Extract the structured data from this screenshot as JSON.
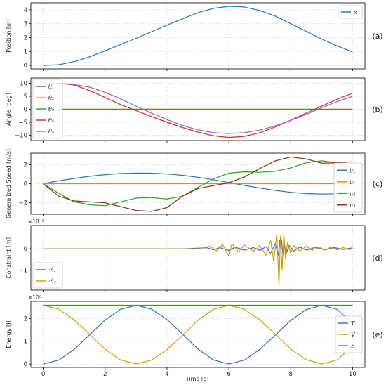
{
  "figure": {
    "x_axis_label": "Time [s]"
  },
  "chart_data": [
    {
      "type": "line",
      "id": "a",
      "tag": "(a)",
      "ylabel": "Position [m]",
      "xlim": [
        -0.4,
        10.4
      ],
      "ylim": [
        -0.25,
        4.5
      ],
      "xticks": [
        0,
        2,
        4,
        6,
        8,
        10
      ],
      "yticks": [
        0,
        1,
        2,
        3,
        4
      ],
      "legend_loc": "top-right",
      "series": [
        {
          "name": "x",
          "legend_label": "x",
          "color": "#1f77b4",
          "x": [
            0,
            0.5,
            1,
            1.5,
            2,
            2.5,
            3,
            3.5,
            4,
            4.5,
            5,
            5.5,
            6,
            6.5,
            7,
            7.5,
            8,
            8.5,
            9,
            9.5,
            10
          ],
          "y": [
            0,
            0.05,
            0.27,
            0.62,
            1.05,
            1.5,
            1.95,
            2.42,
            2.9,
            3.35,
            3.8,
            4.1,
            4.25,
            4.2,
            3.95,
            3.55,
            3.0,
            2.45,
            1.9,
            1.4,
            0.97
          ]
        }
      ]
    },
    {
      "type": "line",
      "id": "b",
      "tag": "(b)",
      "ylabel": "Angle [deg]",
      "xlim": [
        -0.4,
        10.4
      ],
      "ylim": [
        -12,
        12
      ],
      "xticks": [
        0,
        2,
        4,
        6,
        8,
        10
      ],
      "yticks": [
        -10,
        -5,
        0,
        5,
        10
      ],
      "legend_loc": "bottom-left",
      "series": [
        {
          "name": "θ1",
          "legend_label": "θ₁",
          "color": "#1f77b4",
          "x": [
            0,
            10
          ],
          "y": [
            0,
            0
          ]
        },
        {
          "name": "θ2",
          "legend_label": "θ₂",
          "color": "#ff7f0e",
          "x": [
            0,
            10
          ],
          "y": [
            0,
            0
          ]
        },
        {
          "name": "θ3",
          "legend_label": "θ₃",
          "color": "#2ca02c",
          "x": [
            0,
            10
          ],
          "y": [
            0,
            0
          ]
        },
        {
          "name": "θ4",
          "legend_label": "θ₄",
          "color": "#d62728",
          "x": [
            0,
            0.5,
            1,
            1.5,
            2,
            2.5,
            3,
            3.5,
            4,
            4.5,
            5,
            5.5,
            6,
            6.5,
            7,
            7.5,
            8,
            8.5,
            9,
            9.5,
            10
          ],
          "y": [
            10,
            10,
            9.3,
            7.2,
            4.5,
            1.8,
            -0.5,
            -2.8,
            -5.0,
            -7.0,
            -8.8,
            -10.2,
            -10.8,
            -10.4,
            -9.0,
            -6.8,
            -4.2,
            -1.5,
            1.2,
            3.8,
            6.2
          ]
        },
        {
          "name": "θ5",
          "legend_label": "θ₅",
          "color": "#9467bd",
          "x": [
            0,
            0.5,
            1,
            1.5,
            2,
            2.5,
            3,
            3.5,
            4,
            4.5,
            5,
            5.5,
            6,
            6.5,
            7,
            7.5,
            8,
            8.5,
            9,
            9.5,
            10
          ],
          "y": [
            10,
            9.9,
            9.5,
            8.5,
            6.5,
            4.0,
            1.2,
            -1.5,
            -4.0,
            -6.2,
            -7.9,
            -9.0,
            -9.3,
            -9.0,
            -8.0,
            -6.4,
            -4.3,
            -2.0,
            0.6,
            2.9,
            5.0
          ]
        }
      ]
    },
    {
      "type": "line",
      "id": "c",
      "tag": "(c)",
      "ylabel": "Generalized Speed [m/s]",
      "xlim": [
        -0.4,
        10.4
      ],
      "ylim": [
        -3.2,
        3.2
      ],
      "xticks": [
        0,
        2,
        4,
        6,
        8,
        10
      ],
      "yticks": [
        -2,
        0,
        2
      ],
      "legend_loc": "bottom-right",
      "series": [
        {
          "name": "ux",
          "legend_label": "uₓ",
          "color": "#1f77b4",
          "x": [
            0,
            0.5,
            1,
            1.5,
            2,
            2.5,
            3,
            3.5,
            4,
            4.5,
            5,
            5.5,
            6,
            6.5,
            7,
            7.5,
            8,
            8.5,
            9,
            9.5,
            10
          ],
          "y": [
            0,
            0.3,
            0.55,
            0.78,
            0.95,
            1.07,
            1.12,
            1.1,
            1.02,
            0.88,
            0.68,
            0.42,
            0.12,
            -0.18,
            -0.45,
            -0.7,
            -0.9,
            -1.03,
            -1.08,
            -1.05,
            -0.95
          ]
        },
        {
          "name": "u1",
          "legend_label": "u₁",
          "color": "#ff7f0e",
          "x": [
            0,
            10
          ],
          "y": [
            0,
            0
          ]
        },
        {
          "name": "u2",
          "legend_label": "u₂",
          "color": "#2ca02c",
          "x": [
            0,
            0.5,
            1,
            1.5,
            2,
            2.5,
            3,
            3.5,
            4,
            4.5,
            5,
            5.5,
            6,
            6.5,
            7,
            7.5,
            8,
            8.5,
            9,
            9.5,
            10
          ],
          "y": [
            0,
            -1.0,
            -1.9,
            -2.2,
            -2.3,
            -1.9,
            -1.5,
            -1.45,
            -1.6,
            -1.3,
            -0.4,
            0.5,
            1.1,
            1.25,
            1.2,
            1.3,
            1.65,
            2.2,
            2.4,
            2.2,
            1.6
          ]
        },
        {
          "name": "u3",
          "legend_label": "u₃",
          "color": "#8c2d04",
          "x": [
            0,
            0.5,
            1,
            1.5,
            2,
            2.5,
            3,
            3.5,
            4,
            4.5,
            5,
            5.5,
            6,
            6.5,
            7,
            7.5,
            8,
            8.5,
            9,
            9.5,
            10
          ],
          "y": [
            0,
            -1.3,
            -1.8,
            -1.9,
            -2.0,
            -2.4,
            -2.8,
            -2.9,
            -2.5,
            -1.3,
            -0.5,
            -0.2,
            0.1,
            0.7,
            1.6,
            2.4,
            2.8,
            2.6,
            2.15,
            2.2,
            2.3
          ]
        }
      ]
    },
    {
      "type": "line",
      "id": "d",
      "tag": "(d)",
      "ylabel": "Constraint [m]",
      "multiplier": "×10⁻⁵",
      "xlim": [
        -0.4,
        10.4
      ],
      "ylim": [
        -1.95,
        1.1
      ],
      "xticks": [
        0,
        2,
        4,
        6,
        8,
        10
      ],
      "yticks": [
        -1,
        0
      ],
      "legend_loc": "bottom-left",
      "series": [
        {
          "name": "ṅx",
          "legend_label": "·n̂ₓ",
          "color": "#4f5bd5",
          "x": [
            0,
            4.5,
            5.3,
            5.5,
            5.7,
            6.0,
            6.2,
            6.5,
            6.8,
            7.0,
            7.2,
            7.35,
            7.5,
            7.6,
            7.65,
            7.7,
            7.75,
            7.8,
            7.85,
            7.95,
            8.1,
            8.3,
            8.5,
            8.8,
            9.1,
            9.4,
            9.7,
            10
          ],
          "y": [
            0,
            0,
            0.05,
            -0.05,
            0.06,
            -0.08,
            0.08,
            -0.06,
            0.06,
            -0.08,
            0.1,
            -0.2,
            0.25,
            -0.3,
            0.4,
            0.45,
            -0.3,
            0.2,
            -0.25,
            0.15,
            -0.1,
            0.08,
            -0.06,
            0.07,
            -0.05,
            0.06,
            -0.03,
            0.05
          ]
        },
        {
          "name": "ṅy",
          "legend_label": "·n̂ᵧ",
          "color": "#c8a000",
          "x": [
            0,
            5.0,
            5.4,
            5.6,
            5.8,
            6.0,
            6.1,
            6.3,
            6.5,
            6.8,
            7.0,
            7.2,
            7.35,
            7.45,
            7.55,
            7.62,
            7.67,
            7.72,
            7.78,
            7.83,
            7.9,
            8.0,
            8.1,
            8.3,
            8.5,
            8.7,
            8.9,
            9.1,
            9.3,
            9.5,
            9.7,
            9.9,
            10
          ],
          "y": [
            0,
            0,
            0.12,
            -0.1,
            0.2,
            -0.35,
            0.25,
            -0.15,
            0.18,
            -0.12,
            0.15,
            -0.3,
            0.4,
            -0.6,
            0.7,
            -1.7,
            0.6,
            -1.0,
            0.7,
            -0.45,
            0.3,
            -0.2,
            0.15,
            -0.1,
            0.12,
            -0.08,
            0.1,
            -0.06,
            0.08,
            -0.05,
            0.06,
            -0.04,
            0.03
          ]
        }
      ]
    },
    {
      "type": "line",
      "id": "e",
      "tag": "(e)",
      "ylabel": "Energy [J]",
      "multiplier": "×10⁶",
      "xlabel": "Time [s]",
      "xlim": [
        -0.4,
        10.4
      ],
      "ylim": [
        -0.15,
        2.75
      ],
      "xticks": [
        0,
        2,
        4,
        6,
        8,
        10
      ],
      "yticks": [
        0,
        1,
        2
      ],
      "legend_loc": "center-right",
      "series": [
        {
          "name": "T",
          "legend_label": "T",
          "color": "#3a68c8",
          "x": [
            0,
            0.5,
            1,
            1.5,
            2,
            2.5,
            3,
            3.5,
            4,
            4.5,
            5,
            5.5,
            6,
            6.5,
            7,
            7.5,
            8,
            8.5,
            9,
            9.5,
            10
          ],
          "y": [
            0,
            0.17,
            0.64,
            1.28,
            1.93,
            2.4,
            2.58,
            2.41,
            1.95,
            1.32,
            0.66,
            0.18,
            0,
            0.17,
            0.64,
            1.27,
            1.92,
            2.39,
            2.58,
            2.4,
            1.8
          ]
        },
        {
          "name": "V",
          "legend_label": "V",
          "color": "#c8a000",
          "x": [
            0,
            0.5,
            1,
            1.5,
            2,
            2.5,
            3,
            3.5,
            4,
            4.5,
            5,
            5.5,
            6,
            6.5,
            7,
            7.5,
            8,
            8.5,
            9,
            9.5,
            10
          ],
          "y": [
            2.58,
            2.41,
            1.94,
            1.3,
            0.65,
            0.18,
            0,
            0.17,
            0.63,
            1.26,
            1.92,
            2.4,
            2.58,
            2.41,
            1.94,
            1.31,
            0.66,
            0.19,
            0,
            0.18,
            0.78
          ]
        },
        {
          "name": "E",
          "legend_label": "E",
          "color": "#2ca02c",
          "x": [
            0,
            10
          ],
          "y": [
            2.58,
            2.58
          ]
        }
      ]
    }
  ]
}
